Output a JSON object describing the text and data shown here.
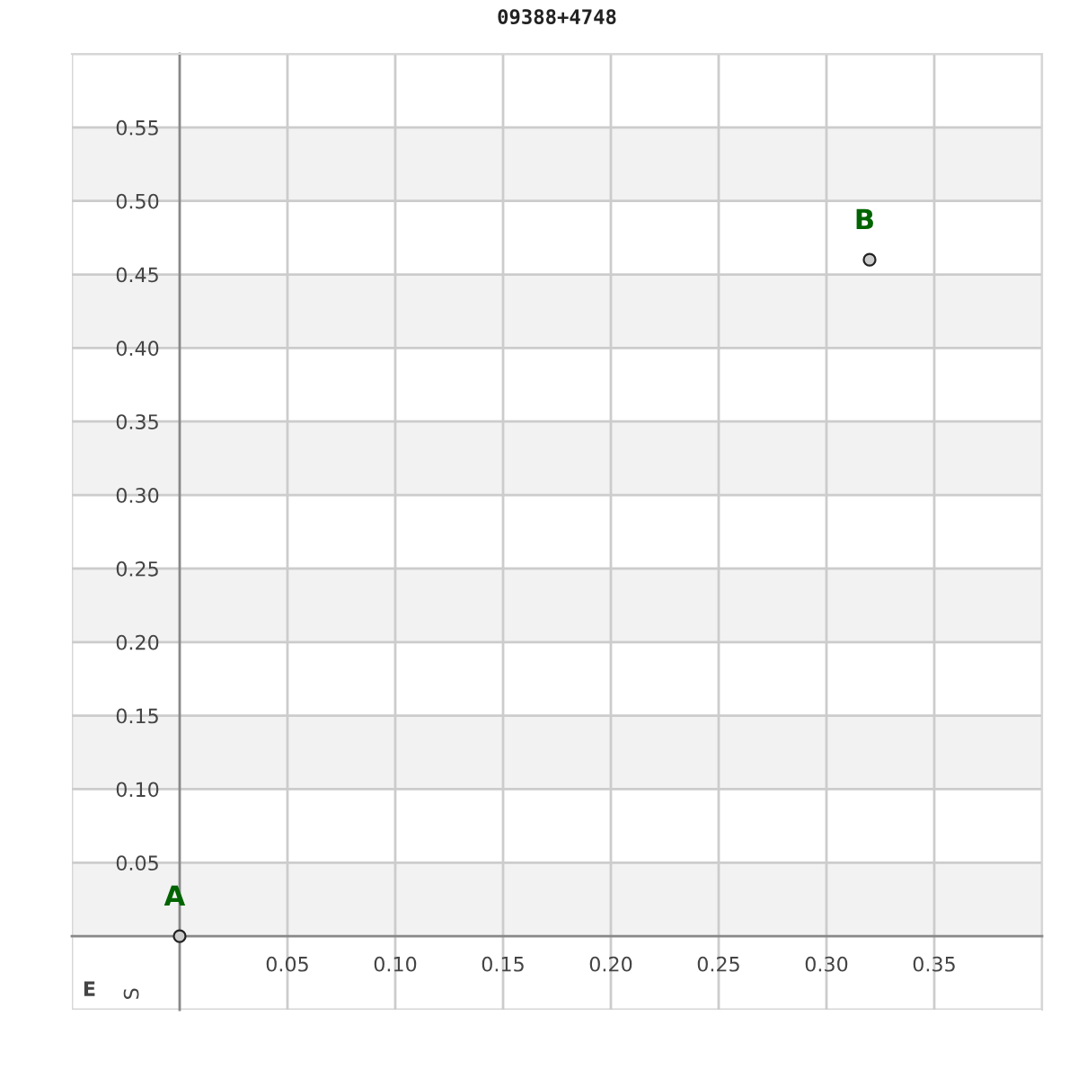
{
  "chart_data": {
    "type": "scatter",
    "title": "09388+4748",
    "x": [
      0,
      0.32
    ],
    "values": [
      0,
      0.46
    ],
    "color": "#cccccc",
    "marker": "circle",
    "xlim": [
      -0.05,
      0.4
    ],
    "ylim": [
      -0.05,
      0.6
    ],
    "xticks": [
      0.05,
      {
        "value": 0.1,
        "label": "0.10"
      },
      0.15,
      {
        "value": 0.2,
        "label": "0.20"
      },
      0.25,
      {
        "value": 0.3,
        "label": "0.30"
      },
      0.35
    ],
    "yticks": [
      0.05,
      {
        "value": 0.1,
        "label": "0.10"
      },
      0.15,
      {
        "value": 0.2,
        "label": "0.20"
      },
      0.25,
      {
        "value": 0.3,
        "label": "0.30"
      },
      0.35,
      {
        "value": 0.4,
        "label": "0.40"
      },
      0.45,
      {
        "value": 0.5,
        "label": "0.50"
      },
      0.55
    ],
    "grid": true,
    "bands": [
      {
        "axis": "y",
        "from": 0,
        "to": 0.05,
        "color": "#f2f2f2"
      },
      {
        "axis": "y",
        "from": 0.1,
        "to": 0.15,
        "color": "#f2f2f2"
      },
      {
        "axis": "y",
        "from": 0.2,
        "to": 0.25,
        "color": "#f2f2f2"
      },
      {
        "axis": "y",
        "from": 0.3,
        "to": 0.35,
        "color": "#f2f2f2"
      },
      {
        "axis": "y",
        "from": 0.4,
        "to": 0.45,
        "color": "#f2f2f2"
      },
      {
        "axis": "y",
        "from": 0.5,
        "to": 0.55,
        "color": "#f2f2f2"
      }
    ],
    "annotations": [
      {
        "text": "A",
        "x": 0,
        "y": 0
      },
      {
        "text": "B",
        "x": 0.32,
        "y": 0.46
      },
      "E",
      "S"
    ]
  }
}
